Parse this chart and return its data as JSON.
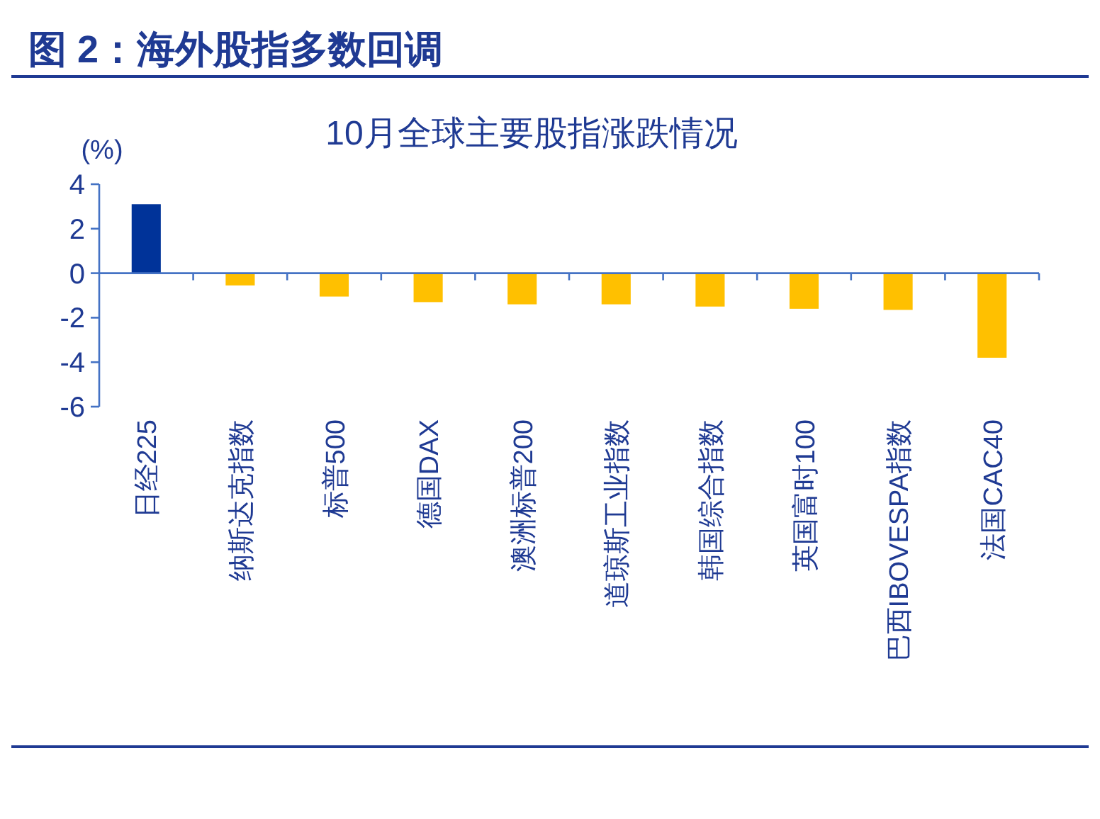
{
  "chart_data": {
    "type": "bar",
    "title": "图 2：海外股指多数回调",
    "subtitle": "10月全球主要股指涨跌情况",
    "ylabel": "(%)",
    "categories": [
      "日经225",
      "纳斯达克指数",
      "标普500",
      "德国DAX",
      "澳洲标普200",
      "道琼斯工业指数",
      "韩国综合指数",
      "英国富时100",
      "巴西IBOVESPA指数",
      "法国CAC40"
    ],
    "values": [
      3.1,
      -0.55,
      -1.05,
      -1.3,
      -1.4,
      -1.4,
      -1.5,
      -1.6,
      -1.65,
      -3.8
    ],
    "colors": [
      "#003399",
      "#ffc000",
      "#ffc000",
      "#ffc000",
      "#ffc000",
      "#ffc000",
      "#ffc000",
      "#ffc000",
      "#ffc000",
      "#ffc000"
    ],
    "ylim": [
      -6,
      4
    ],
    "yticks": [
      -6,
      -4,
      -2,
      0,
      2,
      4
    ],
    "grid": false,
    "ref_lines": [
      {
        "axis": "y",
        "value": 0,
        "color": "#4472c4"
      }
    ]
  }
}
